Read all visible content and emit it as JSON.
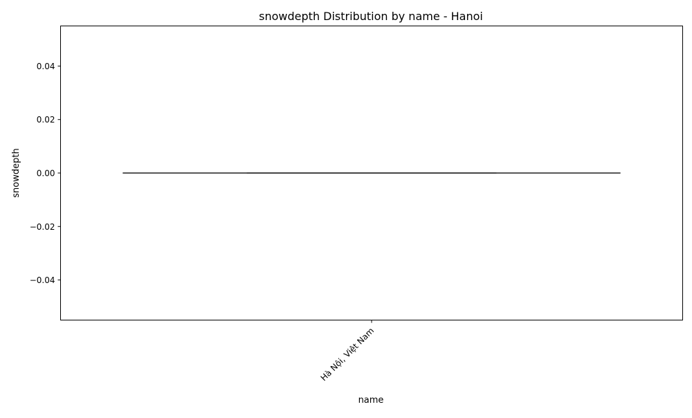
{
  "chart_data": {
    "type": "box",
    "title": "snowdepth Distribution by name - Hanoi",
    "xlabel": "name",
    "ylabel": "snowdepth",
    "categories": [
      "Hà Nội, Việt Nam"
    ],
    "boxes": [
      {
        "category": "Hà Nội, Việt Nam",
        "min": 0,
        "q1": 0,
        "median": 0,
        "q3": 0,
        "max": 0
      }
    ],
    "ylim": [
      -0.055,
      0.055
    ],
    "yticks": [
      -0.04,
      -0.02,
      0.0,
      0.02,
      0.04
    ],
    "ytick_labels": [
      "−0.04",
      "−0.02",
      "0.00",
      "0.02",
      "0.04"
    ],
    "grid": false,
    "colors": {
      "box_line": "#3f3f3f",
      "axes": "#000000",
      "background": "#ffffff"
    }
  }
}
